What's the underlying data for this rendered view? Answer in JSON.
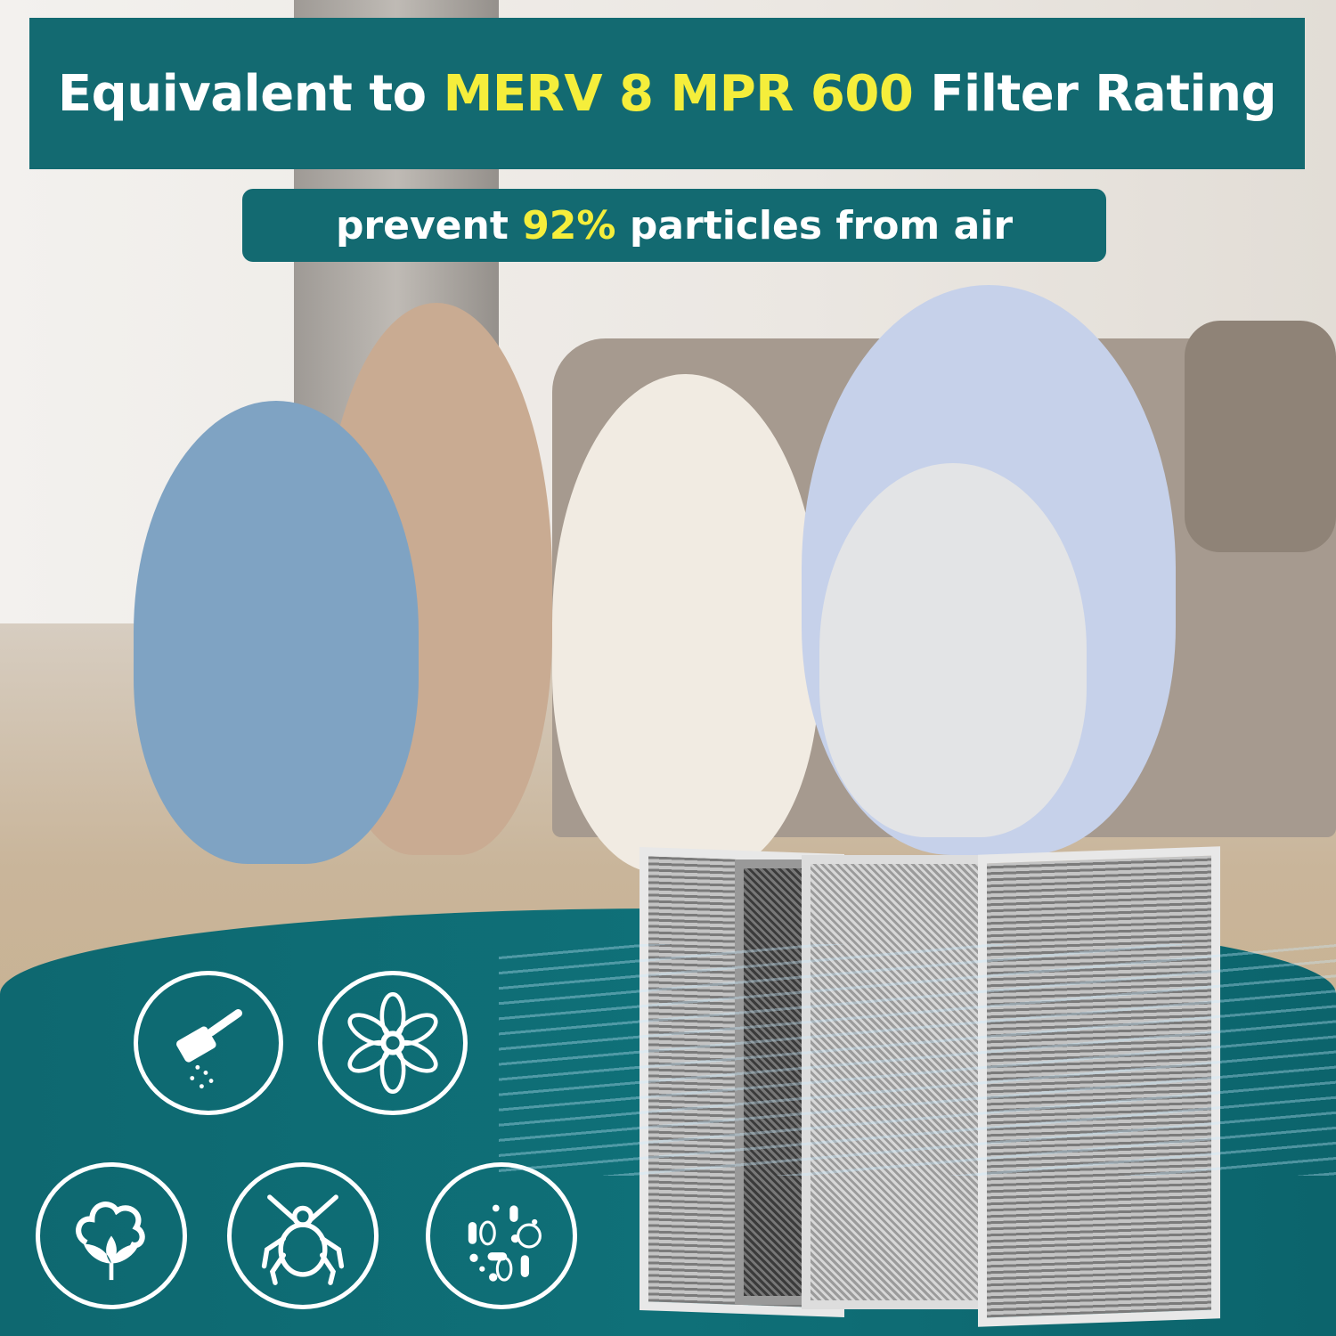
{
  "header": {
    "prefix": "Equivalent to ",
    "highlight": "MERV 8 MPR 600",
    "suffix": " Filter Rating"
  },
  "subtitle": {
    "prefix": "prevent ",
    "highlight": "92%",
    "suffix": " particles from air"
  },
  "colors": {
    "teal": "#136a71",
    "highlight": "#f5ee3b",
    "text": "#ffffff"
  },
  "icons": [
    "dust-icon",
    "pollen-flower-icon",
    "cotton-lint-icon",
    "dust-mite-icon",
    "bacteria-icon"
  ]
}
